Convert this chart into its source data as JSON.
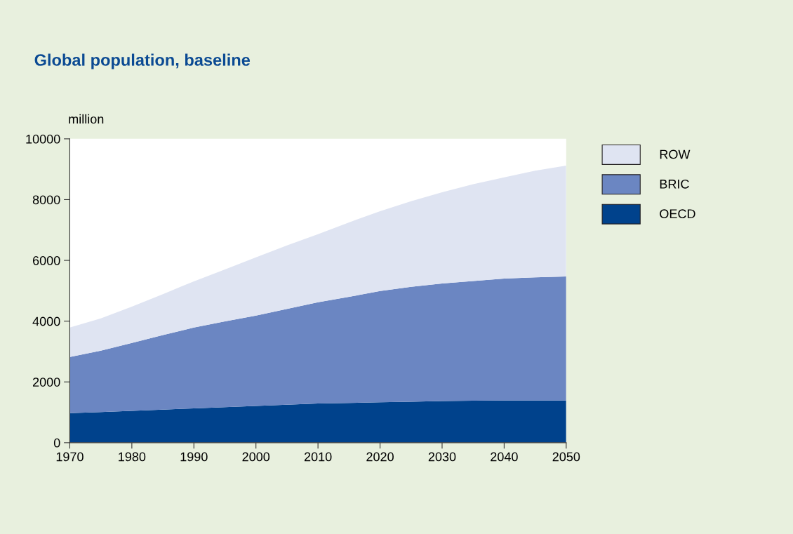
{
  "chart_data": {
    "type": "area",
    "stacked": true,
    "title": "Global population, baseline",
    "ylabel": "million",
    "x": [
      1970,
      1975,
      1980,
      1985,
      1990,
      1995,
      2000,
      2005,
      2010,
      2015,
      2020,
      2025,
      2030,
      2035,
      2040,
      2045,
      2050
    ],
    "series": [
      {
        "name": "OECD",
        "color": "#00428c",
        "values": [
          970,
          1010,
          1050,
          1090,
          1130,
          1170,
          1210,
          1250,
          1290,
          1310,
          1330,
          1350,
          1370,
          1380,
          1390,
          1390,
          1390
        ]
      },
      {
        "name": "BRIC",
        "color": "#6b86c2",
        "values": [
          1850,
          2020,
          2230,
          2450,
          2660,
          2820,
          2970,
          3150,
          3330,
          3490,
          3660,
          3780,
          3870,
          3940,
          4010,
          4050,
          4080
        ]
      },
      {
        "name": "ROW",
        "color": "#dfe4f2",
        "values": [
          970,
          1060,
          1200,
          1350,
          1520,
          1710,
          1920,
          2090,
          2240,
          2450,
          2630,
          2820,
          3000,
          3190,
          3330,
          3510,
          3650
        ]
      }
    ],
    "xlim": [
      1970,
      2050
    ],
    "xticks": [
      1970,
      1980,
      1990,
      2000,
      2010,
      2020,
      2030,
      2040,
      2050
    ],
    "ylim": [
      0,
      10000
    ],
    "yticks": [
      0,
      2000,
      4000,
      6000,
      8000,
      10000
    ],
    "grid": false,
    "legend": "top right"
  }
}
